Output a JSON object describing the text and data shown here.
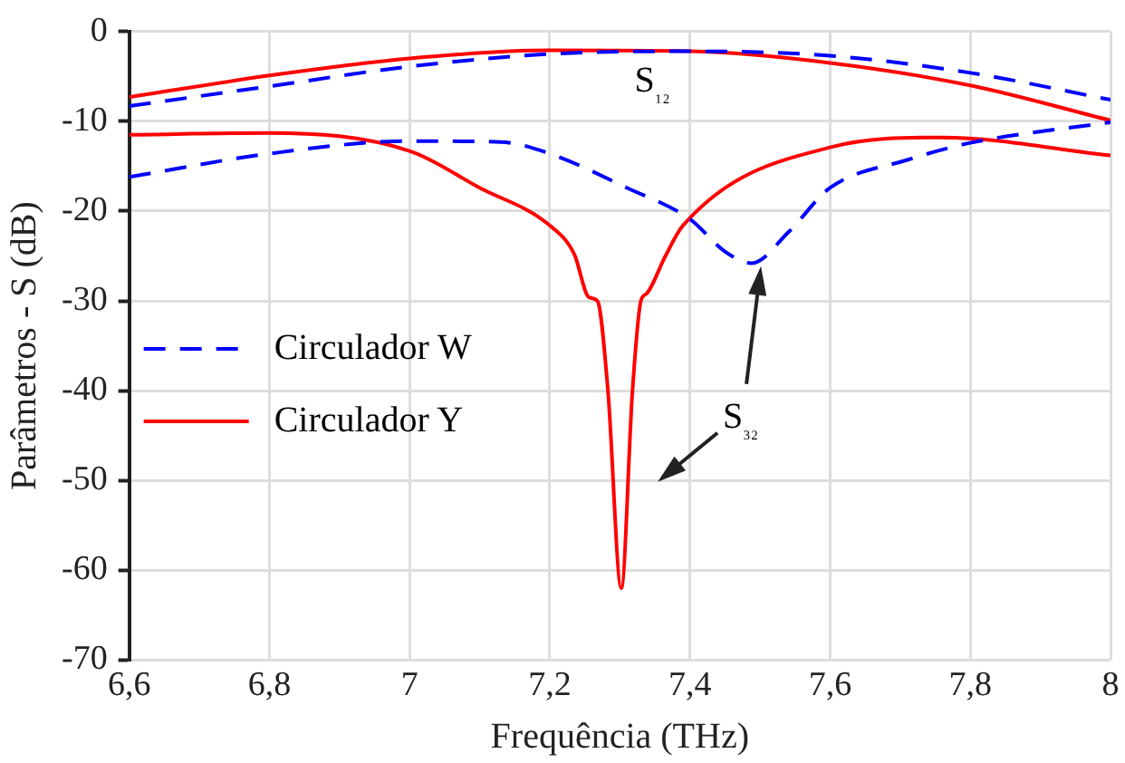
{
  "chart_data": {
    "type": "line",
    "xlabel": "Frequência (THz)",
    "ylabel": "Parâmetros - S (dB)",
    "xlim": [
      6.6,
      8
    ],
    "xticks": [
      {
        "value": 6.6,
        "label": "6,6"
      },
      {
        "value": 6.8,
        "label": "6,8"
      },
      7,
      {
        "value": 7.2,
        "label": "7,2"
      },
      {
        "value": 7.4,
        "label": "7,4"
      },
      {
        "value": 7.6,
        "label": "7,6"
      },
      {
        "value": 7.8,
        "label": "7,8"
      },
      8
    ],
    "ylim": [
      -70,
      0
    ],
    "yticks": [
      -70,
      -60,
      -50,
      -40,
      -30,
      -20,
      -10,
      0
    ],
    "grid": true,
    "legend": "left",
    "marker": "none",
    "series": [
      {
        "name": "Circulador W",
        "color": "#0000ff",
        "line_style": "dashed",
        "x": [
          6.6,
          6.8,
          7.0,
          7.2,
          7.4,
          7.6,
          7.8,
          8.0
        ],
        "values": [
          -8.3,
          -6.1,
          -3.9,
          -2.5,
          -2.2,
          -2.7,
          -4.6,
          -7.6
        ]
      },
      {
        "color": "#0000ff",
        "line_style": "dashed",
        "x": [
          6.6,
          6.8,
          7.0,
          7.13,
          7.2,
          7.31,
          7.4,
          7.45,
          7.488,
          7.541,
          7.6,
          7.71,
          7.8,
          8.0
        ],
        "values": [
          -16.2,
          -13.6,
          -12.2,
          -12.3,
          -13.6,
          -17.4,
          -20.9,
          -24.5,
          -25.8,
          -22.3,
          -17.4,
          -14.3,
          -12.4,
          -10.1
        ]
      },
      {
        "name": "Circulador Y",
        "color": "#ff0000",
        "line_style": "solid",
        "x": [
          6.6,
          6.8,
          7.0,
          7.2,
          7.4,
          7.6,
          7.8,
          8.0
        ],
        "values": [
          -7.3,
          -4.9,
          -3.0,
          -2.1,
          -2.2,
          -3.5,
          -6.0,
          -9.9
        ]
      },
      {
        "color": "#ff0000",
        "line_style": "solid",
        "x": [
          6.6,
          6.8,
          7.0,
          7.1,
          7.2,
          7.235,
          7.256,
          7.268,
          7.283,
          7.302,
          7.318,
          7.33,
          7.338,
          7.365,
          7.39,
          7.6,
          7.76,
          8.0
        ],
        "values": [
          -11.5,
          -11.3,
          -13.3,
          -17.4,
          -21.6,
          -24.8,
          -29.6,
          -30,
          -40,
          -62,
          -40,
          -30,
          -29.2,
          -25,
          -21.6,
          -12.9,
          -11.8,
          -13.8
        ]
      }
    ],
    "annotations": [
      "S₁₂",
      "S₃₂"
    ]
  }
}
